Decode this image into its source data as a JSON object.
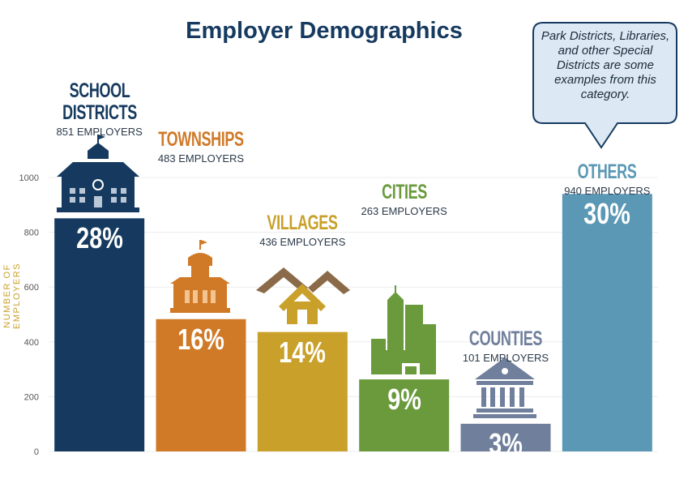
{
  "chart_data": {
    "type": "bar",
    "title": "Employer Demographics",
    "y_label": "NUMBER OF EMPLOYERS",
    "categories": [
      "SCHOOL DISTRICTS",
      "TOWNSHIPS",
      "VILLAGES",
      "CITIES",
      "COUNTIES",
      "OTHERS"
    ],
    "values": [
      851,
      483,
      436,
      263,
      101,
      940
    ],
    "value_labels": [
      "851 EMPLOYERS",
      "483 EMPLOYERS",
      "436 EMPLOYERS",
      "263 EMPLOYERS",
      "101 EMPLOYERS",
      "940 EMPLOYERS"
    ],
    "percent_labels": [
      "28%",
      "16%",
      "14%",
      "9%",
      "3%",
      "30%"
    ],
    "colors": [
      "#163a5f",
      "#d07a28",
      "#c9a02a",
      "#6a9a3c",
      "#6f7f9c",
      "#5b98b5"
    ],
    "ylim": [
      0,
      1000
    ],
    "yticks": [
      0,
      200,
      400,
      600,
      800,
      1000
    ],
    "grid": true,
    "annotation": "Park Districts, Libraries, and other Special Districts are some examples from this category."
  }
}
